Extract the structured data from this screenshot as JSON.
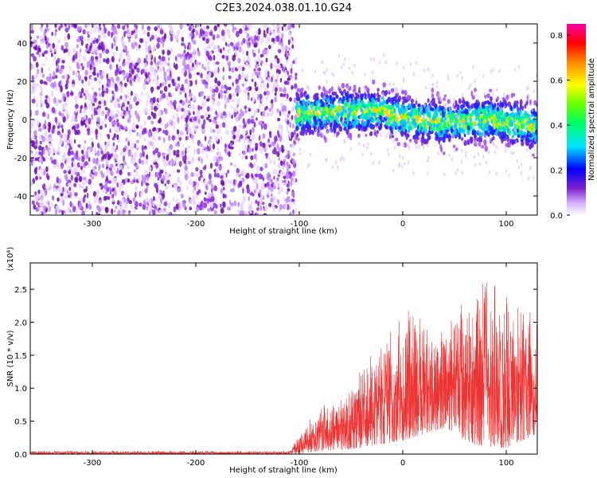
{
  "title": "C2E3.2024.038.01.10.G24",
  "spectrogram": {
    "type": "heatmap",
    "xlabel": "Height of straight line (km)",
    "ylabel": "Frequency (Hz)",
    "xlim": [
      -360,
      130
    ],
    "ylim": [
      -50,
      50
    ],
    "xticks": [
      -300,
      -200,
      -100,
      0,
      100
    ],
    "yticks": [
      -40,
      -20,
      0,
      20,
      40
    ],
    "colorbar": {
      "label": "Normalized spectral amplitude",
      "range": [
        0.0,
        0.85
      ],
      "ticks": [
        0.0,
        0.2,
        0.4,
        0.6,
        0.8
      ],
      "colors": [
        "#ffffff",
        "#d8b4fe",
        "#7e22ce",
        "#0000ff",
        "#00e5ff",
        "#00ff66",
        "#66ff00",
        "#ffff00",
        "#ff8800",
        "#ff0000",
        "#ff00aa"
      ]
    },
    "noise_region_x": [
      -360,
      -103
    ],
    "signal_region_x": [
      -103,
      130
    ],
    "signal_center_hz": [
      {
        "x": -100,
        "y": 3
      },
      {
        "x": -60,
        "y": 4
      },
      {
        "x": -20,
        "y": 4
      },
      {
        "x": 0,
        "y": 1
      },
      {
        "x": 40,
        "y": -2
      },
      {
        "x": 80,
        "y": 0
      },
      {
        "x": 125,
        "y": -3
      }
    ]
  },
  "snr": {
    "type": "line",
    "xlabel": "Height of straight line (km)",
    "ylabel": "SNR (10 * v/v)",
    "multiplier": "(x10⁴)",
    "xlim": [
      -360,
      130
    ],
    "ylim": [
      0,
      2.9
    ],
    "xticks": [
      -300,
      -200,
      -100,
      0,
      100
    ],
    "yticks": [
      "0.0",
      "0.5",
      "1.0",
      "1.5",
      "2.0",
      "2.5"
    ],
    "color": "#ee3333",
    "envelope": [
      {
        "x": -360,
        "lo": 0.0,
        "hi": 0.05
      },
      {
        "x": -110,
        "lo": 0.0,
        "hi": 0.05
      },
      {
        "x": -100,
        "lo": 0.0,
        "hi": 0.3
      },
      {
        "x": -80,
        "lo": 0.05,
        "hi": 0.75
      },
      {
        "x": -60,
        "lo": 0.05,
        "hi": 0.9
      },
      {
        "x": -40,
        "lo": 0.1,
        "hi": 1.3
      },
      {
        "x": -20,
        "lo": 0.15,
        "hi": 1.75
      },
      {
        "x": 0,
        "lo": 0.2,
        "hi": 2.2
      },
      {
        "x": 20,
        "lo": 0.3,
        "hi": 2.2
      },
      {
        "x": 40,
        "lo": 0.4,
        "hi": 2.0
      },
      {
        "x": 60,
        "lo": 0.2,
        "hi": 2.5
      },
      {
        "x": 80,
        "lo": 0.1,
        "hi": 2.75
      },
      {
        "x": 100,
        "lo": 0.1,
        "hi": 2.6
      },
      {
        "x": 130,
        "lo": 0.3,
        "hi": 2.1
      }
    ]
  }
}
